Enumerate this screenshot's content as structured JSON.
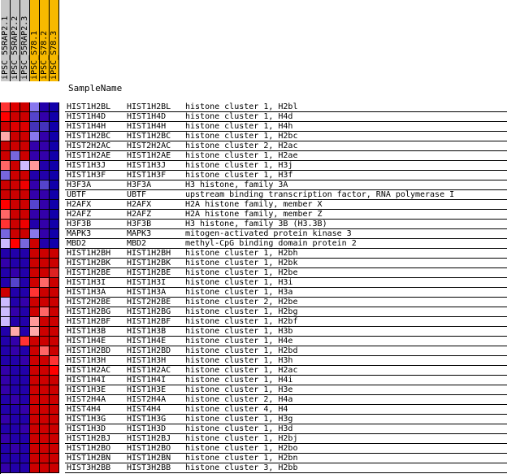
{
  "samples": [
    {
      "name": "iPSC_55RAP2.1",
      "color": "#c8c8c8"
    },
    {
      "name": "iPSC_55RAP2.2",
      "color": "#c8c8c8"
    },
    {
      "name": "iPSC_55RAP2.3",
      "color": "#c8c8c8"
    },
    {
      "name": "iPSC_S78.1",
      "color": "#f7b900"
    },
    {
      "name": "iPSC_S78.2",
      "color": "#f7b900"
    },
    {
      "name": "iPSC_S78.3",
      "color": "#f7b900"
    }
  ],
  "header_label": "SampleName",
  "rows": [
    {
      "id": "HIST1H2BL",
      "symbol": "HIST1H2BL",
      "desc": "histone cluster 1, H2bl",
      "cells": [
        "#ff3333",
        "#dd0000",
        "#cc0000",
        "#8877ee",
        "#2200aa",
        "#1100aa"
      ]
    },
    {
      "id": "HIST1H4D",
      "symbol": "HIST1H4D",
      "desc": "histone cluster 1, H4d",
      "cells": [
        "#ff0000",
        "#cc0000",
        "#cc0000",
        "#5544cc",
        "#3300aa",
        "#1100aa"
      ]
    },
    {
      "id": "HIST1H4H",
      "symbol": "HIST1H4H",
      "desc": "histone cluster 1, H4h",
      "cells": [
        "#cc0000",
        "#dd0000",
        "#dd0000",
        "#4433bb",
        "#4433bb",
        "#1100aa"
      ]
    },
    {
      "id": "HIST1H2BC",
      "symbol": "HIST1H2BC",
      "desc": "histone cluster 1, H2bc",
      "cells": [
        "#ffaaaa",
        "#cc0000",
        "#cc0000",
        "#8877ee",
        "#3300aa",
        "#1100aa"
      ]
    },
    {
      "id": "HIST2H2AC",
      "symbol": "HIST2H2AC",
      "desc": "histone cluster 2, H2ac",
      "cells": [
        "#cc0000",
        "#cc0000",
        "#cc0000",
        "#3300aa",
        "#3300aa",
        "#1100aa"
      ]
    },
    {
      "id": "HIST1H2AE",
      "symbol": "HIST1H2AE",
      "desc": "histone cluster 1, H2ae",
      "cells": [
        "#cc0000",
        "#7766dd",
        "#cc0000",
        "#3300aa",
        "#3300aa",
        "#1100aa"
      ]
    },
    {
      "id": "HIST1H3J",
      "symbol": "HIST1H3J",
      "desc": "histone cluster 1, H3j",
      "cells": [
        "#ff6666",
        "#cc0000",
        "#ccbbff",
        "#ff9999",
        "#2200aa",
        "#1100aa"
      ]
    },
    {
      "id": "HIST1H3F",
      "symbol": "HIST1H3F",
      "desc": "histone cluster 1, H3f",
      "cells": [
        "#7766dd",
        "#cc0000",
        "#cc0000",
        "#2200aa",
        "#2200aa",
        "#1100aa"
      ]
    },
    {
      "id": "H3F3A",
      "symbol": "H3F3A",
      "desc": "H3 histone, family 3A",
      "cells": [
        "#cc0000",
        "#cc0000",
        "#ee0000",
        "#3300aa",
        "#5544cc",
        "#1100aa"
      ]
    },
    {
      "id": "UBTF",
      "symbol": "UBTF",
      "desc": "upstream binding transcription factor, RNA polymerase I",
      "cells": [
        "#cc0000",
        "#cc0000",
        "#cc0000",
        "#3300aa",
        "#3300aa",
        "#1100aa"
      ]
    },
    {
      "id": "H2AFX",
      "symbol": "H2AFX",
      "desc": "H2A histone family, member X",
      "cells": [
        "#ff0000",
        "#cc0000",
        "#cc0000",
        "#5544cc",
        "#3300aa",
        "#1100aa"
      ]
    },
    {
      "id": "H2AFZ",
      "symbol": "H2AFZ",
      "desc": "H2A histone family, member Z",
      "cells": [
        "#ff6666",
        "#cc0000",
        "#cc0000",
        "#3300aa",
        "#3300aa",
        "#1100aa"
      ]
    },
    {
      "id": "H3F3B",
      "symbol": "H3F3B",
      "desc": "H3 histone, family 3B (H3.3B)",
      "cells": [
        "#ff3333",
        "#cc0000",
        "#ee0000",
        "#2200aa",
        "#3300aa",
        "#1100aa"
      ]
    },
    {
      "id": "MAPK3",
      "symbol": "MAPK3",
      "desc": "mitogen-activated protein kinase 3",
      "cells": [
        "#7766dd",
        "#cc0000",
        "#cc0000",
        "#8877ee",
        "#3300aa",
        "#1100aa"
      ]
    },
    {
      "id": "MBD2",
      "symbol": "MBD2",
      "desc": "methyl-CpG binding domain protein 2",
      "cells": [
        "#ccbbff",
        "#ff0000",
        "#7766dd",
        "#cc0000",
        "#2200aa",
        "#1100aa"
      ]
    },
    {
      "id": "HIST1H2BH",
      "symbol": "HIST1H2BH",
      "desc": "histone cluster 1, H2bh",
      "cells": [
        "#2200aa",
        "#2200aa",
        "#2200aa",
        "#cc0000",
        "#cc0000",
        "#cc0000"
      ]
    },
    {
      "id": "HIST1H2BK",
      "symbol": "HIST1H2BK",
      "desc": "histone cluster 1, H2bk",
      "cells": [
        "#3300aa",
        "#2200aa",
        "#2200aa",
        "#cc0000",
        "#cc0000",
        "#cc0000"
      ]
    },
    {
      "id": "HIST1H2BE",
      "symbol": "HIST1H2BE",
      "desc": "histone cluster 1, H2be",
      "cells": [
        "#2200aa",
        "#3300aa",
        "#2200aa",
        "#cc0000",
        "#cc0000",
        "#dd2222"
      ]
    },
    {
      "id": "HIST1H3I",
      "symbol": "HIST1H3I",
      "desc": "histone cluster 1, H3i",
      "cells": [
        "#2200aa",
        "#5544cc",
        "#2200aa",
        "#cc0000",
        "#ff6666",
        "#cc0000"
      ]
    },
    {
      "id": "HIST1H3A",
      "symbol": "HIST1H3A",
      "desc": "histone cluster 1, H3a",
      "cells": [
        "#cc0000",
        "#2200aa",
        "#2200aa",
        "#ff3333",
        "#cc0000",
        "#cc0000"
      ]
    },
    {
      "id": "HIST2H2BE",
      "symbol": "HIST2H2BE",
      "desc": "histone cluster 2, H2be",
      "cells": [
        "#ccbbff",
        "#2200aa",
        "#3300aa",
        "#cc0000",
        "#cc0000",
        "#cc0000"
      ]
    },
    {
      "id": "HIST1H2BG",
      "symbol": "HIST1H2BG",
      "desc": "histone cluster 1, H2bg",
      "cells": [
        "#ccbbff",
        "#3300aa",
        "#2200aa",
        "#cc0000",
        "#ff6666",
        "#cc0000"
      ]
    },
    {
      "id": "HIST1H2BF",
      "symbol": "HIST1H2BF",
      "desc": "histone cluster 1, H2bf",
      "cells": [
        "#ccbbff",
        "#2200aa",
        "#2200aa",
        "#ff9999",
        "#cc0000",
        "#cc0000"
      ]
    },
    {
      "id": "HIST1H3B",
      "symbol": "HIST1H3B",
      "desc": "histone cluster 1, H3b",
      "cells": [
        "#2200aa",
        "#ffaaaa",
        "#2200aa",
        "#ffaaaa",
        "#cc0000",
        "#cc0000"
      ]
    },
    {
      "id": "HIST1H4E",
      "symbol": "HIST1H4E",
      "desc": "histone cluster 1, H4e",
      "cells": [
        "#2200aa",
        "#3300aa",
        "#ff3333",
        "#cc0000",
        "#cc0000",
        "#cc0000"
      ]
    },
    {
      "id": "HIST1H2BD",
      "symbol": "HIST1H2BD",
      "desc": "histone cluster 1, H2bd",
      "cells": [
        "#2200aa",
        "#3300aa",
        "#2200aa",
        "#cc0000",
        "#ff6666",
        "#cc0000"
      ]
    },
    {
      "id": "HIST1H3H",
      "symbol": "HIST1H3H",
      "desc": "histone cluster 1, H3h",
      "cells": [
        "#2200aa",
        "#2200aa",
        "#3300aa",
        "#cc0000",
        "#cc0000",
        "#ff3333"
      ]
    },
    {
      "id": "HIST1H2AC",
      "symbol": "HIST1H2AC",
      "desc": "histone cluster 1, H2ac",
      "cells": [
        "#3300aa",
        "#2200aa",
        "#2200aa",
        "#cc0000",
        "#cc0000",
        "#ff0000"
      ]
    },
    {
      "id": "HIST1H4I",
      "symbol": "HIST1H4I",
      "desc": "histone cluster 1, H4i",
      "cells": [
        "#3300aa",
        "#2200aa",
        "#2200aa",
        "#cc0000",
        "#cc0000",
        "#cc0000"
      ]
    },
    {
      "id": "HIST1H3E",
      "symbol": "HIST1H3E",
      "desc": "histone cluster 1, H3e",
      "cells": [
        "#3300aa",
        "#2200aa",
        "#2200aa",
        "#cc0000",
        "#cc0000",
        "#cc0000"
      ]
    },
    {
      "id": "HIST2H4A",
      "symbol": "HIST2H4A",
      "desc": "histone cluster 2, H4a",
      "cells": [
        "#2200aa",
        "#3300aa",
        "#2200aa",
        "#cc0000",
        "#cc0000",
        "#cc0000"
      ]
    },
    {
      "id": "HIST4H4",
      "symbol": "HIST4H4",
      "desc": "histone cluster 4, H4",
      "cells": [
        "#2200aa",
        "#2200aa",
        "#3300aa",
        "#cc0000",
        "#cc0000",
        "#cc0000"
      ]
    },
    {
      "id": "HIST1H3G",
      "symbol": "HIST1H3G",
      "desc": "histone cluster 1, H3g",
      "cells": [
        "#3300aa",
        "#2200aa",
        "#2200aa",
        "#cc0000",
        "#cc0000",
        "#cc0000"
      ]
    },
    {
      "id": "HIST1H3D",
      "symbol": "HIST1H3D",
      "desc": "histone cluster 1, H3d",
      "cells": [
        "#2200aa",
        "#2200aa",
        "#3300aa",
        "#cc0000",
        "#cc0000",
        "#cc0000"
      ]
    },
    {
      "id": "HIST1H2BJ",
      "symbol": "HIST1H2BJ",
      "desc": "histone cluster 1, H2bj",
      "cells": [
        "#3300aa",
        "#2200aa",
        "#2200aa",
        "#cc0000",
        "#cc0000",
        "#cc0000"
      ]
    },
    {
      "id": "HIST1H2BO",
      "symbol": "HIST1H2BO",
      "desc": "histone cluster 1, H2bo",
      "cells": [
        "#2200aa",
        "#3300aa",
        "#2200aa",
        "#cc0000",
        "#cc0000",
        "#cc0000"
      ]
    },
    {
      "id": "HIST1H2BN",
      "symbol": "HIST1H2BN",
      "desc": "histone cluster 1, H2bn",
      "cells": [
        "#2200aa",
        "#2200aa",
        "#2200aa",
        "#cc0000",
        "#cc0000",
        "#cc0000"
      ]
    },
    {
      "id": "HIST3H2BB",
      "symbol": "HIST3H2BB",
      "desc": "histone cluster 3, H2bb",
      "cells": [
        "#3300aa",
        "#2200aa",
        "#2200aa",
        "#cc0000",
        "#cc0000",
        "#cc0000"
      ]
    }
  ]
}
